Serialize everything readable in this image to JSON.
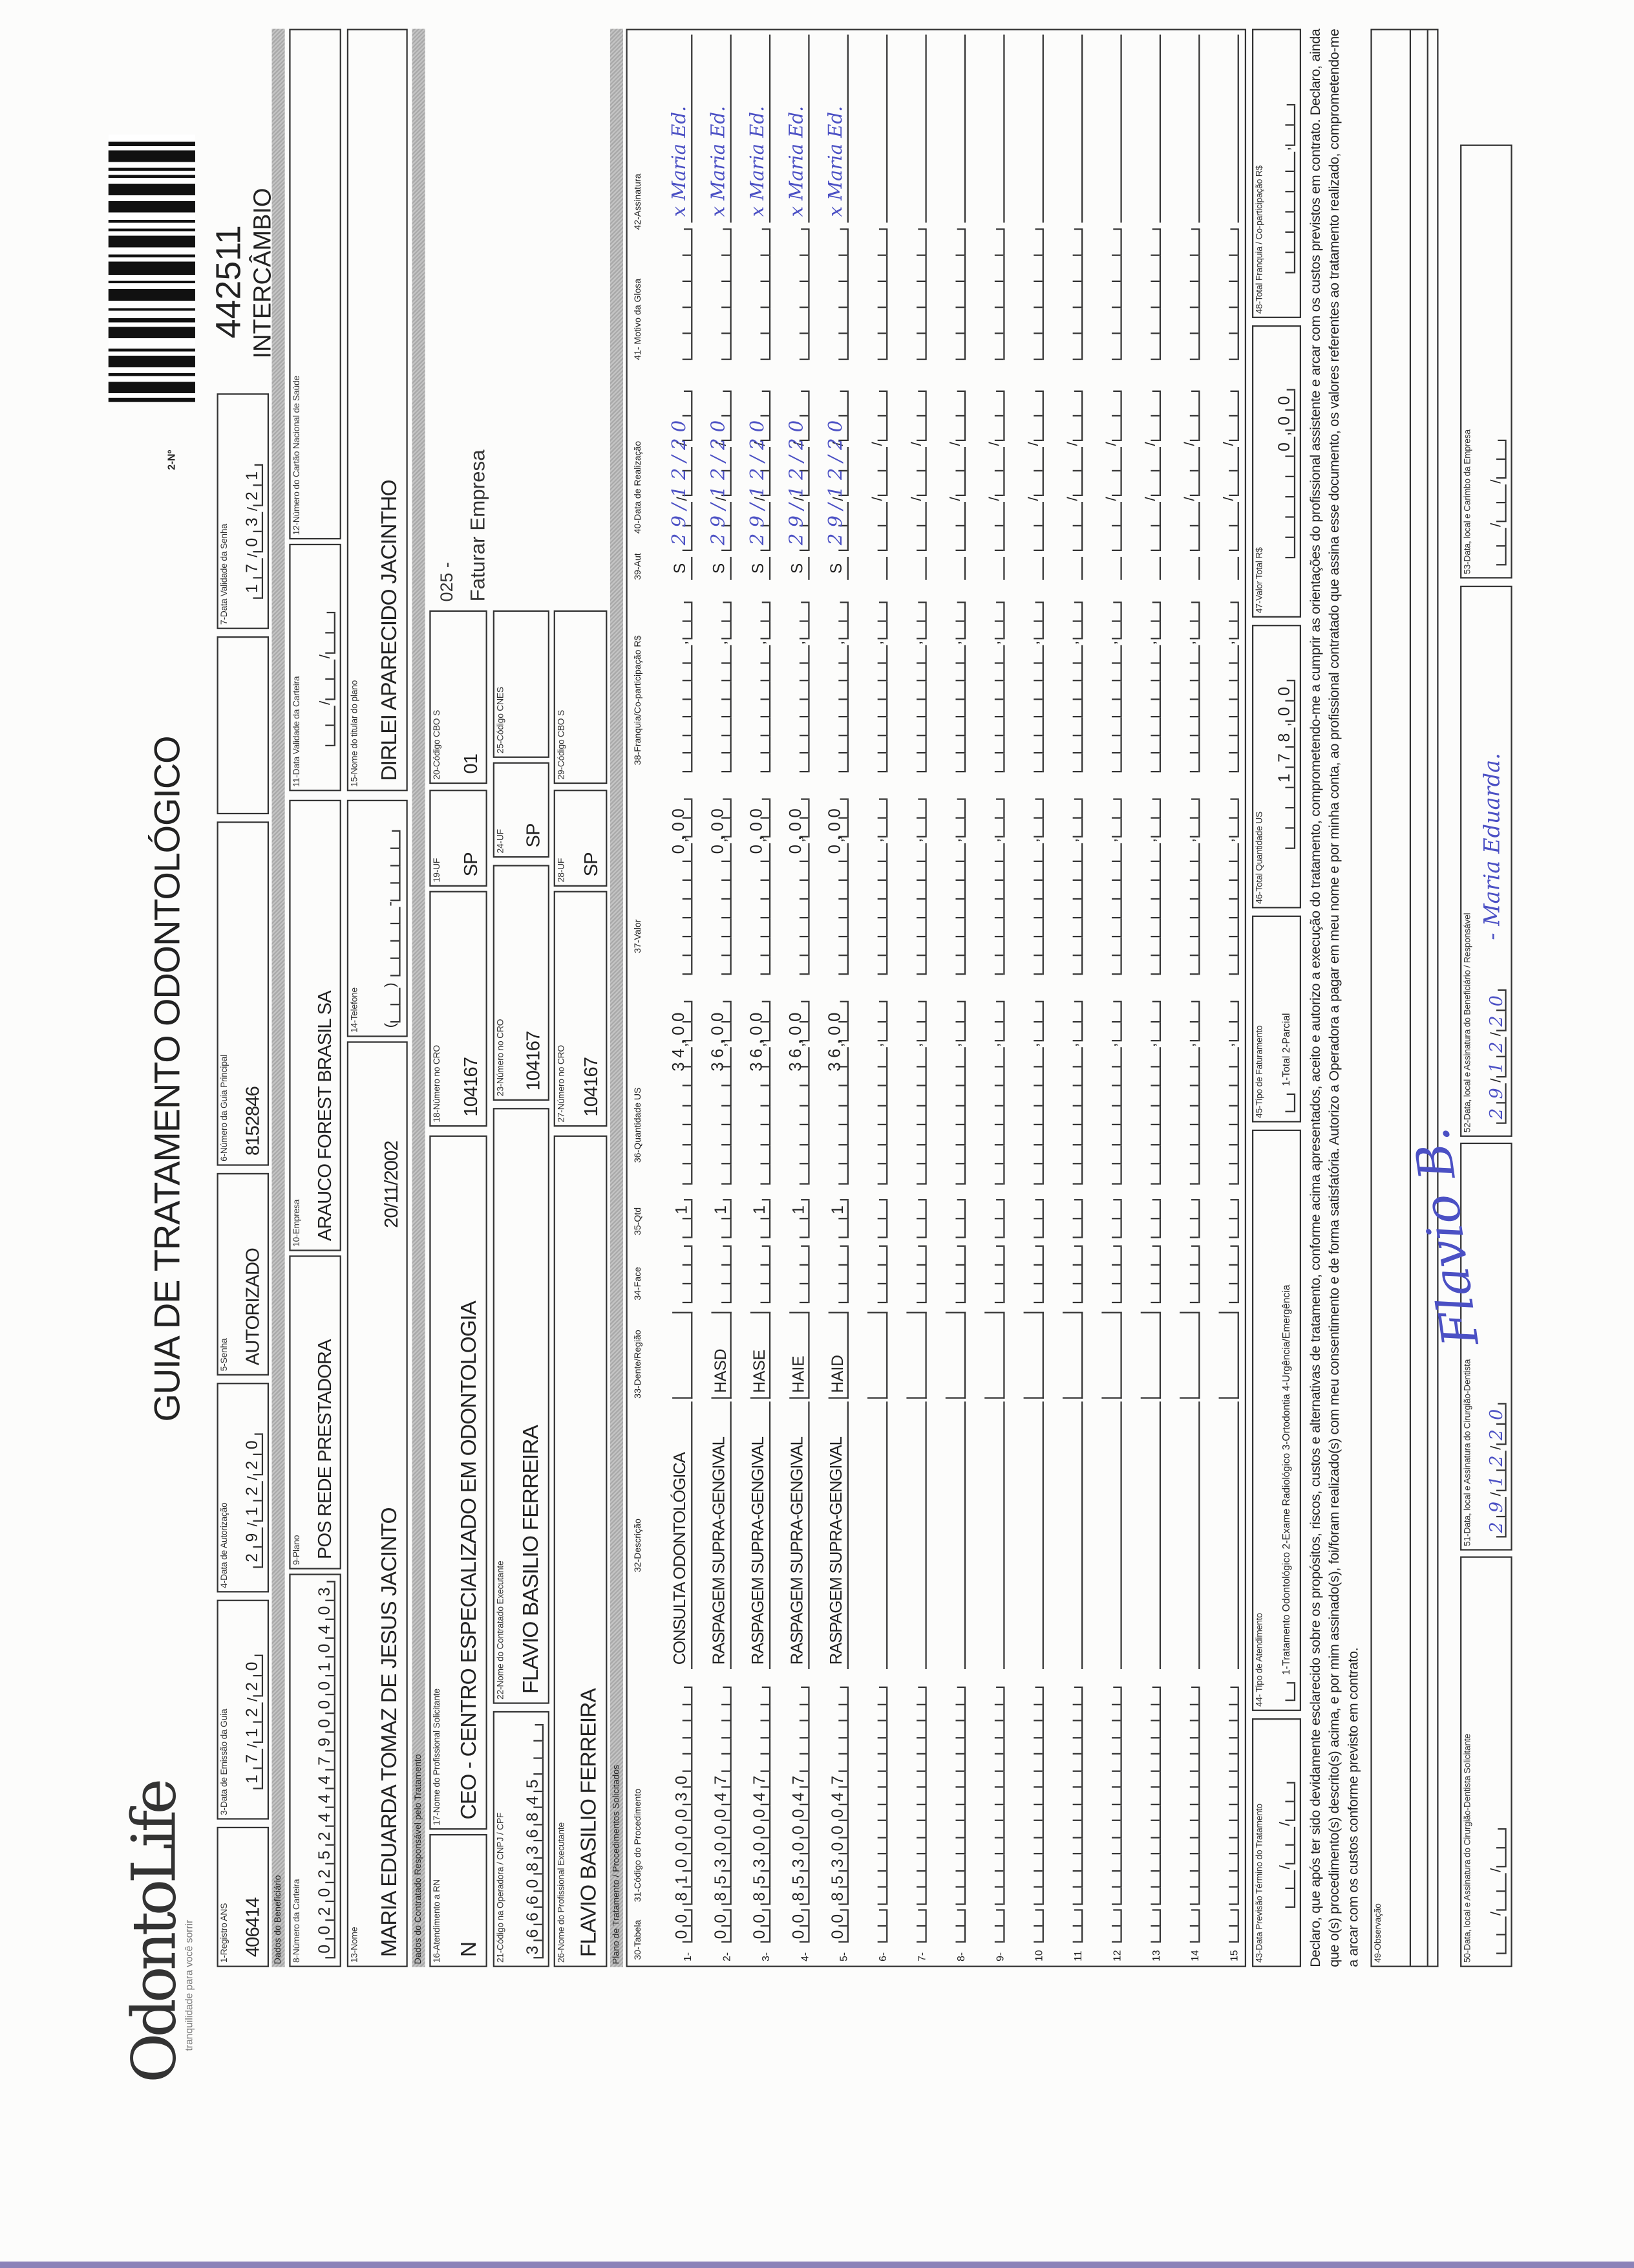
{
  "header": {
    "logo": "OdontoLife",
    "tagline": "tranquilidade para você sorrir",
    "title": "GUIA DE TRATAMENTO ODONTOLÓGICO",
    "number_label": "2-Nº",
    "guide_number": "442511",
    "guide_type": "INTERCÂMBIO"
  },
  "sections": {
    "beneficiario": "Dados do Beneficiário",
    "contratado": "Dados do Contratado Responsável pelo Tratamento",
    "plano": "Plano de Tratamento / Procedimentos Solicitados"
  },
  "fields": {
    "f1": {
      "label": "1-Registro ANS",
      "value": "406414"
    },
    "f3": {
      "label": "3-Data de Emissão da Guia",
      "value": "17/12/20"
    },
    "f4": {
      "label": "4-Data de Autorização",
      "value": "29/12/20"
    },
    "f5": {
      "label": "5-Senha",
      "value": "AUTORIZADO"
    },
    "f6": {
      "label": "6-Número da Guia Principal",
      "value": "8152846"
    },
    "f7": {
      "label": "7-Data Validade da Senha",
      "value": "17/03/21"
    },
    "f8": {
      "label": "8-Número da Carteira",
      "value": "00202524447900010403"
    },
    "f9": {
      "label": "9-Plano",
      "value": "POS REDE PRESTADORA"
    },
    "f10": {
      "label": "10-Empresa",
      "value": "ARAUCO FOREST BRASIL SA"
    },
    "f11": {
      "label": "11-Data Validade da Carteira",
      "value": ""
    },
    "f12": {
      "label": "12-Número do Cartão Nacional de Saúde",
      "value": ""
    },
    "f13": {
      "label": "13-Nome",
      "value": "MARIA EDUARDA TOMAZ DE JESUS JACINTO",
      "birthdate": "20/11/2002"
    },
    "f14": {
      "label": "14-Telefone",
      "value": ""
    },
    "f15": {
      "label": "15-Nome do titular do plano",
      "value": "DIRLEI APARECIDO JACINTHO"
    },
    "f16": {
      "label": "16-Atendimento a RN",
      "value": "N"
    },
    "f17": {
      "label": "17-Nome do Profissional Solicitante",
      "value": "CEO - CENTRO ESPECIALIZADO EM ODONTOLOGIA"
    },
    "f18": {
      "label": "18-Número no CRO",
      "value": "104167"
    },
    "f19": {
      "label": "19-UF",
      "value": "SP"
    },
    "f20": {
      "label": "20-Código CBO S",
      "value": "01"
    },
    "billing_note": {
      "code": "025 -",
      "text": "Faturar Empresa"
    },
    "f21": {
      "label": "21-Código na Operadora / CNPJ / CPF",
      "value": "36660836845"
    },
    "f22": {
      "label": "22-Nome do Contratado Executante",
      "value": "FLAVIO BASILIO FERREIRA"
    },
    "f23": {
      "label": "23-Número no CRO",
      "value": "104167"
    },
    "f24": {
      "label": "24-UF",
      "value": "SP"
    },
    "f25": {
      "label": "25-Código CNES",
      "value": ""
    },
    "f26": {
      "label": "26-Nome do Profissional Executante",
      "value": "FLAVIO BASILIO FERREIRA"
    },
    "f27": {
      "label": "27-Número no CRO",
      "value": "104167"
    },
    "f28": {
      "label": "28-UF",
      "value": "SP"
    },
    "f29": {
      "label": "29-Código CBO S",
      "value": ""
    }
  },
  "table": {
    "headers": {
      "tabela": "30-Tabela",
      "codigo": "31-Código do Procedimento",
      "descricao": "32-Descrição",
      "dente": "33-Dente/Região",
      "face": "34-Face",
      "qtd": "35-Qtd",
      "qtd_us": "36-Quantidade US",
      "valor": "37-Valor",
      "franquia": "38-Franquia/Co-participação R$",
      "aut": "39-Aut",
      "data": "40-Data de Realização",
      "motivo": "41- Motivo da Glosa",
      "assinatura": "42-Assinatura"
    },
    "rows": [
      {
        "n": "1-",
        "tabela": "00",
        "codigo": "81000030",
        "descricao": "CONSULTA ODONTOLÓGICA",
        "dente": "",
        "qtd": "1",
        "qtd_us": "34,00",
        "valor": "0,00",
        "aut": "S",
        "data": "29/12/20",
        "assinatura": "x Maria Ed."
      },
      {
        "n": "2-",
        "tabela": "00",
        "codigo": "85300047",
        "descricao": "RASPAGEM SUPRA-GENGIVAL",
        "dente": "HASD",
        "qtd": "1",
        "qtd_us": "36,00",
        "valor": "0,00",
        "aut": "S",
        "data": "29/12/20",
        "assinatura": "x Maria Ed."
      },
      {
        "n": "3-",
        "tabela": "00",
        "codigo": "85300047",
        "descricao": "RASPAGEM SUPRA-GENGIVAL",
        "dente": "HASE",
        "qtd": "1",
        "qtd_us": "36,00",
        "valor": "0,00",
        "aut": "S",
        "data": "29/12/20",
        "assinatura": "x Maria Ed."
      },
      {
        "n": "4-",
        "tabela": "00",
        "codigo": "85300047",
        "descricao": "RASPAGEM SUPRA-GENGIVAL",
        "dente": "HAIE",
        "qtd": "1",
        "qtd_us": "36,00",
        "valor": "0,00",
        "aut": "S",
        "data": "29/12/20",
        "assinatura": "x Maria Ed."
      },
      {
        "n": "5-",
        "tabela": "00",
        "codigo": "85300047",
        "descricao": "RASPAGEM SUPRA-GENGIVAL",
        "dente": "HAID",
        "qtd": "1",
        "qtd_us": "36,00",
        "valor": "0,00",
        "aut": "S",
        "data": "29/12/20",
        "assinatura": "x Maria Ed."
      },
      {
        "n": "6-"
      },
      {
        "n": "7-"
      },
      {
        "n": "8-"
      },
      {
        "n": "9-"
      },
      {
        "n": "10"
      },
      {
        "n": "11"
      },
      {
        "n": "12"
      },
      {
        "n": "13"
      },
      {
        "n": "14"
      },
      {
        "n": "15"
      }
    ]
  },
  "totals": {
    "f43": {
      "label": "43-Data Previsão Término do Tratamento",
      "value": ""
    },
    "f44": {
      "label": "44- Tipo de Atendimento",
      "options": "1-Tratamento Odontológico  2-Exame Radiológico  3-Ortodontia  4-Urgência/Emergência"
    },
    "f45": {
      "label": "45-Tipo de Faturamento",
      "options": "1-Total  2-Parcial"
    },
    "f46": {
      "label": "46-Total Quantidade US",
      "value": "178,00"
    },
    "f47": {
      "label": "47-Valor Total R$",
      "value": "0,00"
    },
    "f48": {
      "label": "48-Total Franquia / Co-participação R$",
      "value": ""
    }
  },
  "declaration": "Declaro, que após ter sido devidamente esclarecido sobre os propósitos, riscos, custos e alternativas de tratamento, conforme acima apresentados, aceito e autorizo a execução do tratamento, comprometendo-me a cumprir as orientações do profissional assistente e arcar com os custos previstos em contrato. Declaro, ainda que o(s) procedimento(s) descrito(s) acima, e por mim assinado(s), foi/foram realizado(s) com meu consentimento e de forma satisfatória. Autorizo a Operadora a pagar em meu nome e por minha conta, ao profissional contratado que assina esse documento, os valores referentes ao tratamento realizado, comprometendo-me a arcar com os custos conforme previsto em contrato.",
  "signatures": {
    "f49": {
      "label": "49-Observação",
      "value": ""
    },
    "f50": {
      "label": "50-Data, local e Assinatura do Cirurgião-Dentista Solicitante",
      "date": ""
    },
    "f51": {
      "label": "51-Data, local e Assinatura do Cirurgião-Dentista",
      "date": "29/12/20",
      "signature": "Flavio B."
    },
    "f52": {
      "label": "52-Data, local e Assinatura do Beneficiário / Responsável",
      "date": "29/12/20",
      "signature": "- Maria Eduarda."
    },
    "f53": {
      "label": "53-Data, local e Carimbo da Empresa",
      "date": ""
    }
  },
  "colors": {
    "ink": "#222222",
    "handwriting": "#4b50c4",
    "section_bar": "#b5b5b5"
  }
}
